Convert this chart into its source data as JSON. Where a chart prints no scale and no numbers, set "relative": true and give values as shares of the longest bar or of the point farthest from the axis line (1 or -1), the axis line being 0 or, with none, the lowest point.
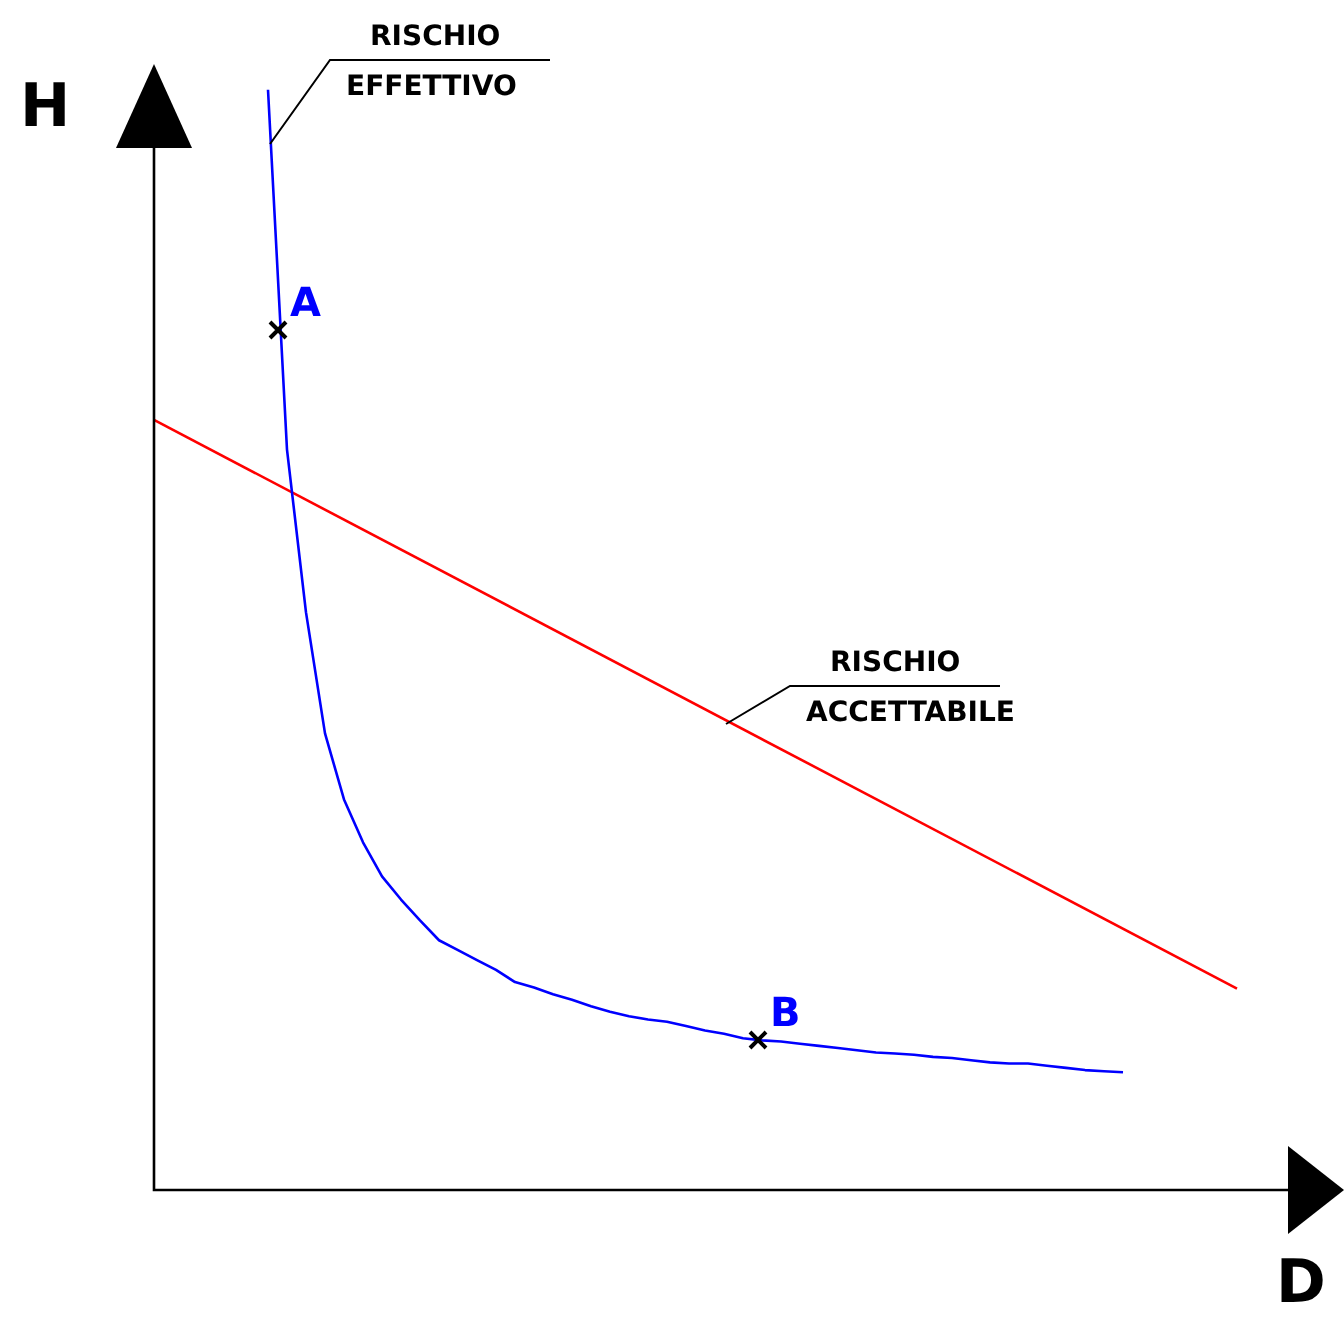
{
  "chart_data": {
    "type": "line",
    "relative": true,
    "xlabel": "D",
    "ylabel": "H",
    "legend": false,
    "marker": "none",
    "line_style": "solid",
    "categories": [
      null,
      null,
      null,
      null,
      null,
      null,
      null,
      null,
      null,
      null,
      null,
      null,
      null,
      null,
      null,
      null,
      null,
      null,
      null,
      null,
      null,
      null,
      null,
      null,
      null,
      null,
      null,
      null,
      null,
      null,
      null,
      null,
      null,
      null,
      null,
      null,
      null,
      null,
      null,
      null,
      null,
      null,
      null,
      null,
      null,
      null,
      null,
      null,
      null,
      null,
      null,
      null,
      null,
      null,
      null,
      null,
      null,
      null,
      null,
      null,
      null
    ],
    "series": [
      {
        "name": "RISCHIO EFFETTIVO",
        "color": "#0000ff",
        "values": [
          null,
          null,
          null,
          null,
          null,
          null,
          1,
          0.673,
          0.525,
          0.415,
          0.355,
          0.316,
          0.285,
          0.264,
          0.245,
          0.227,
          0.218,
          0.209,
          0.2,
          0.189,
          0.184,
          0.178,
          0.173,
          0.167,
          0.162,
          0.158,
          0.155,
          0.153,
          0.149,
          0.145,
          0.142,
          0.138,
          0.136,
          0.135,
          0.133,
          0.131,
          0.129,
          0.127,
          0.125,
          0.124,
          0.123,
          0.121,
          0.12,
          0.118,
          0.116,
          0.115,
          0.115,
          0.113,
          0.111,
          0.109,
          0.108,
          0.107,
          null,
          null,
          null,
          null,
          null,
          null,
          null,
          null,
          null
        ]
      },
      {
        "name": "RISCHIO ACCETTABILE",
        "color": "#ff0000",
        "values": [
          0.7,
          null,
          null,
          null,
          null,
          null,
          null,
          null,
          null,
          null,
          null,
          null,
          null,
          null,
          null,
          null,
          null,
          null,
          null,
          null,
          null,
          null,
          null,
          null,
          null,
          null,
          null,
          null,
          null,
          null,
          null,
          null,
          null,
          null,
          null,
          null,
          null,
          null,
          null,
          null,
          null,
          null,
          null,
          null,
          null,
          null,
          null,
          null,
          null,
          null,
          null,
          null,
          null,
          null,
          null,
          null,
          null,
          0.183,
          null,
          null,
          null
        ]
      }
    ],
    "annotations": [
      "A",
      "B"
    ]
  }
}
